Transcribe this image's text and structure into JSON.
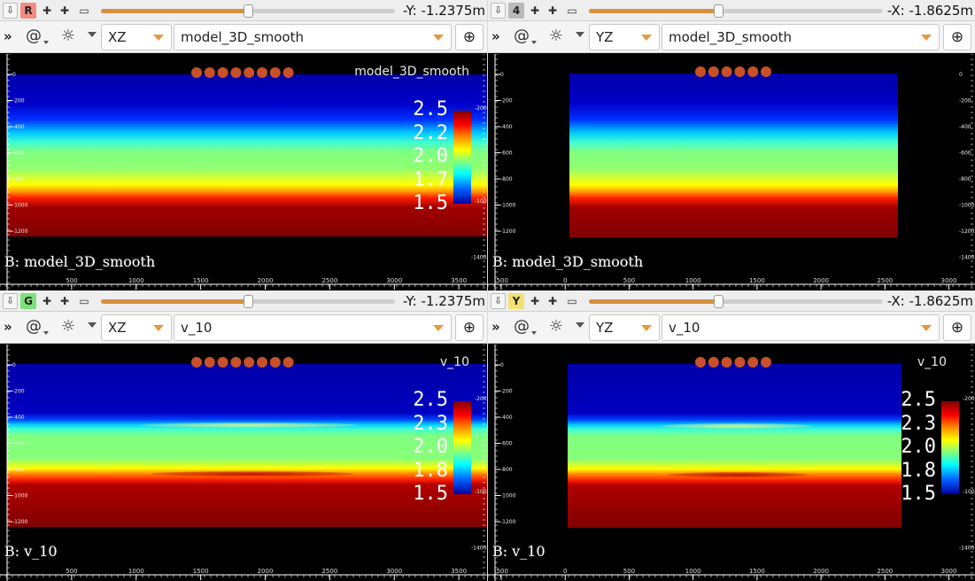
{
  "panes": [
    {
      "id": "tl",
      "badge": "R",
      "badge_color": "#f28b84",
      "slider_fraction": 0.5,
      "coordinate": "-Y: -1.2375m",
      "axis_plane": "XZ",
      "dataset": "model_3D_smooth",
      "overlay_title": "model_3D_smooth",
      "base_label": "B: model_3D_smooth",
      "colorbar_labels": [
        "2.5",
        "2.2",
        "2.0",
        "1.7",
        "1.5"
      ],
      "colorbar_side_ticks": [
        "-200",
        "-1000"
      ],
      "y_ticks": [
        "0",
        "-200",
        "-400",
        "-600",
        "-800",
        "-1000",
        "-1200"
      ],
      "y_ticks_right": [
        "-1400"
      ],
      "x_ticks": [
        "500",
        "1000",
        "1500",
        "2000",
        "2500",
        "3000",
        "3500"
      ],
      "x_range": [
        0,
        3650
      ],
      "source_x": [
        1500,
        1600,
        1700,
        1800,
        1900,
        2000,
        2100,
        2200
      ],
      "variant": "smooth"
    },
    {
      "id": "tr",
      "badge": "4",
      "badge_color": "#b9b9b9",
      "slider_fraction": 0.44,
      "coordinate": "-X: -1.8625m",
      "axis_plane": "YZ",
      "dataset": "model_3D_smooth",
      "overlay_title": "",
      "base_label": "B: model_3D_smooth",
      "colorbar_labels": [],
      "colorbar_side_ticks": [],
      "y_ticks": [
        "0",
        "-200",
        "-400",
        "-600",
        "-800",
        "-1000",
        "-1200"
      ],
      "y_ticks_right": [
        "0",
        "-200",
        "-400",
        "-600",
        "-800",
        "-1000",
        "-1200",
        "-1400"
      ],
      "x_ticks": [
        "-500",
        "0",
        "500",
        "1000",
        "1500",
        "2000",
        "2500",
        "3000"
      ],
      "x_range": [
        -500,
        3100
      ],
      "source_x": [
        1000,
        1100,
        1200,
        1300,
        1400,
        1500
      ],
      "variant": "smooth"
    },
    {
      "id": "bl",
      "badge": "G",
      "badge_color": "#7ee07a",
      "slider_fraction": 0.5,
      "coordinate": "-Y: -1.2375m",
      "axis_plane": "XZ",
      "dataset": "v_10",
      "overlay_title": "v_10",
      "base_label": "B: v_10",
      "colorbar_labels": [
        "2.5",
        "2.3",
        "2.0",
        "1.8",
        "1.5"
      ],
      "colorbar_side_ticks": [
        "-200",
        "-1000"
      ],
      "y_ticks": [
        "0",
        "-200",
        "-400",
        "-600",
        "-800",
        "-1000",
        "-1200"
      ],
      "y_ticks_right": [
        "-1400"
      ],
      "x_ticks": [
        "500",
        "1000",
        "1500",
        "2000",
        "2500",
        "3000",
        "3500"
      ],
      "x_range": [
        0,
        3650
      ],
      "source_x": [
        1500,
        1600,
        1700,
        1800,
        1900,
        2000,
        2100,
        2200
      ],
      "variant": "v10"
    },
    {
      "id": "br",
      "badge": "Y",
      "badge_color": "#f2e173",
      "slider_fraction": 0.44,
      "coordinate": "-X: -1.8625m",
      "axis_plane": "YZ",
      "dataset": "v_10",
      "overlay_title": "v_10",
      "base_label": "B: v_10",
      "colorbar_labels": [
        "2.5",
        "2.3",
        "2.0",
        "1.8",
        "1.5"
      ],
      "colorbar_side_ticks": [
        "-200",
        "-1000"
      ],
      "y_ticks": [
        "0",
        "-200",
        "-400",
        "-600",
        "-800",
        "-1000",
        "-1200"
      ],
      "y_ticks_right": [
        "-1400"
      ],
      "x_ticks": [
        "-500",
        "0",
        "500",
        "1000",
        "1500",
        "2000",
        "2500",
        "3000"
      ],
      "x_range": [
        -500,
        3100
      ],
      "source_x": [
        1000,
        1100,
        1200,
        1300,
        1400,
        1500
      ],
      "variant": "v10"
    }
  ],
  "toolbar": {
    "more_icon": "double-chevron-icon",
    "tool1_icon": "snail-icon",
    "tool2_icon": "sun-icon",
    "zoom_icon": "zoom-in-icon"
  },
  "colors": {
    "source_marker": "#c8502a",
    "slider_fill": "#d7903e"
  }
}
